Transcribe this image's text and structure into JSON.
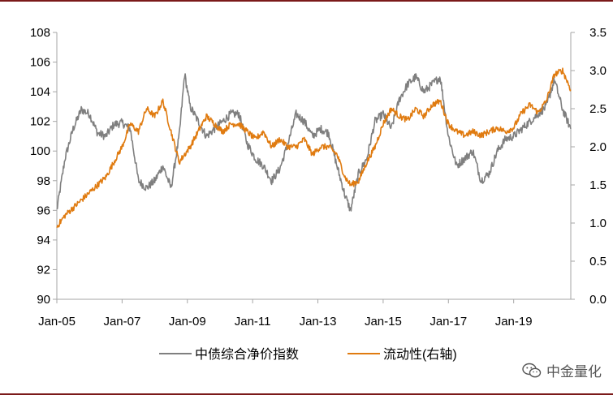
{
  "chart_data": {
    "type": "line",
    "x_ticks": [
      "Jan-05",
      "Jan-07",
      "Jan-09",
      "Jan-11",
      "Jan-13",
      "Jan-15",
      "Jan-17",
      "Jan-19"
    ],
    "x_range": [
      "2005-01",
      "2020-10"
    ],
    "y_left": {
      "lim": [
        90,
        108
      ],
      "ticks": [
        "90",
        "92",
        "94",
        "96",
        "98",
        "100",
        "102",
        "104",
        "106",
        "108"
      ]
    },
    "y_right": {
      "lim": [
        0.0,
        3.5
      ],
      "ticks": [
        "0.0",
        "0.5",
        "1.0",
        "1.5",
        "2.0",
        "2.5",
        "3.0",
        "3.5"
      ]
    },
    "grid": false,
    "legend_position": "bottom",
    "series": [
      {
        "name": "中债综合净价指数",
        "axis": "left",
        "color": "#7f7f7f",
        "x": [
          "2005-01",
          "2005-04",
          "2005-07",
          "2005-10",
          "2006-01",
          "2006-04",
          "2006-07",
          "2006-10",
          "2007-01",
          "2007-04",
          "2007-07",
          "2007-10",
          "2008-01",
          "2008-04",
          "2008-07",
          "2008-10",
          "2008-12",
          "2009-02",
          "2009-05",
          "2009-08",
          "2009-11",
          "2010-02",
          "2010-05",
          "2010-08",
          "2010-11",
          "2011-02",
          "2011-05",
          "2011-08",
          "2011-11",
          "2012-02",
          "2012-05",
          "2012-08",
          "2012-11",
          "2013-02",
          "2013-05",
          "2013-08",
          "2013-11",
          "2014-01",
          "2014-04",
          "2014-07",
          "2014-10",
          "2015-01",
          "2015-04",
          "2015-07",
          "2015-10",
          "2016-01",
          "2016-04",
          "2016-07",
          "2016-10",
          "2017-01",
          "2017-04",
          "2017-07",
          "2017-10",
          "2018-01",
          "2018-04",
          "2018-07",
          "2018-10",
          "2019-01",
          "2019-04",
          "2019-07",
          "2019-10",
          "2020-01",
          "2020-04",
          "2020-07",
          "2020-10"
        ],
        "values": [
          96.0,
          99.5,
          101.5,
          102.8,
          102.5,
          101.2,
          101.0,
          101.8,
          101.9,
          101.5,
          98.0,
          97.5,
          98.0,
          99.0,
          97.5,
          101.0,
          105.2,
          103.0,
          102.0,
          101.0,
          101.5,
          102.0,
          102.5,
          102.5,
          100.5,
          99.5,
          99.0,
          98.0,
          98.8,
          100.5,
          102.5,
          102.0,
          101.0,
          101.5,
          101.2,
          99.0,
          97.0,
          96.0,
          98.5,
          99.5,
          102.0,
          102.5,
          101.5,
          103.5,
          104.5,
          105.0,
          104.0,
          104.5,
          105.0,
          101.0,
          99.0,
          99.5,
          100.0,
          98.0,
          98.5,
          100.0,
          100.8,
          101.0,
          101.5,
          102.0,
          102.5,
          103.0,
          104.8,
          102.8,
          101.5
        ]
      },
      {
        "name": "流动性(右轴)",
        "axis": "right",
        "color": "#e07b10",
        "x": [
          "2005-01",
          "2005-04",
          "2005-07",
          "2005-10",
          "2006-01",
          "2006-04",
          "2006-07",
          "2006-10",
          "2007-01",
          "2007-04",
          "2007-07",
          "2007-10",
          "2008-01",
          "2008-04",
          "2008-07",
          "2008-10",
          "2008-12",
          "2009-02",
          "2009-05",
          "2009-08",
          "2009-11",
          "2010-02",
          "2010-05",
          "2010-08",
          "2010-11",
          "2011-02",
          "2011-05",
          "2011-08",
          "2011-11",
          "2012-02",
          "2012-05",
          "2012-08",
          "2012-11",
          "2013-02",
          "2013-05",
          "2013-08",
          "2013-11",
          "2014-01",
          "2014-04",
          "2014-07",
          "2014-10",
          "2015-01",
          "2015-04",
          "2015-07",
          "2015-10",
          "2016-01",
          "2016-04",
          "2016-07",
          "2016-10",
          "2017-01",
          "2017-04",
          "2017-07",
          "2017-10",
          "2018-01",
          "2018-04",
          "2018-07",
          "2018-10",
          "2019-01",
          "2019-04",
          "2019-07",
          "2019-10",
          "2020-01",
          "2020-04",
          "2020-07",
          "2020-10"
        ],
        "values": [
          0.95,
          1.1,
          1.2,
          1.3,
          1.4,
          1.5,
          1.6,
          1.8,
          2.0,
          2.3,
          2.2,
          2.5,
          2.4,
          2.6,
          2.2,
          1.8,
          1.9,
          2.0,
          2.2,
          2.4,
          2.3,
          2.2,
          2.3,
          2.3,
          2.2,
          2.1,
          2.2,
          2.0,
          2.1,
          2.0,
          2.0,
          2.1,
          1.9,
          2.0,
          2.0,
          1.9,
          1.6,
          1.5,
          1.55,
          1.8,
          2.0,
          2.3,
          2.5,
          2.4,
          2.35,
          2.5,
          2.4,
          2.55,
          2.6,
          2.3,
          2.2,
          2.15,
          2.2,
          2.15,
          2.2,
          2.25,
          2.2,
          2.25,
          2.45,
          2.55,
          2.45,
          2.6,
          2.95,
          3.0,
          2.75
        ]
      }
    ]
  },
  "watermark": {
    "text": "中金量化",
    "icon": "wechat-icon"
  }
}
